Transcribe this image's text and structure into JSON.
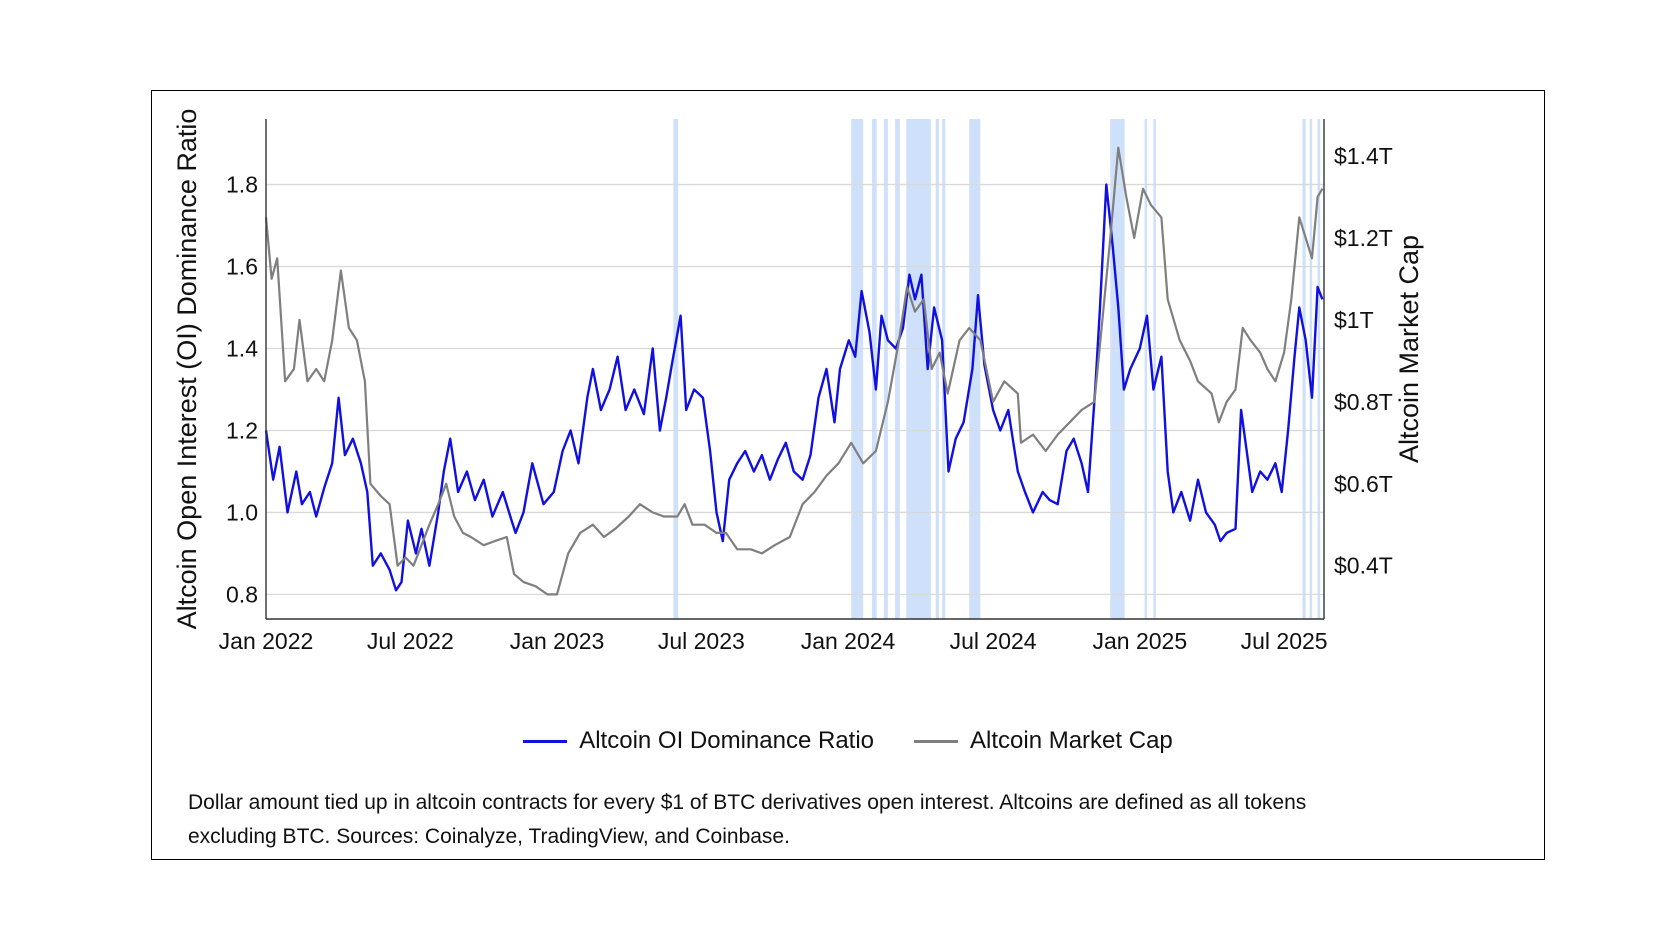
{
  "chart_data": {
    "type": "line",
    "x_type": "date",
    "x_ticks": [
      "Jan 2022",
      "Jul 2022",
      "Jan 2023",
      "Jul 2023",
      "Jan 2024",
      "Jul 2024",
      "Jan 2025",
      "Jul 2025"
    ],
    "x_range": [
      "2022-01-01",
      "2025-08-20"
    ],
    "ylabel": "Altcoin Open Interest (OI) Dominance Ratio",
    "ylim": [
      0.74,
      1.96
    ],
    "y_ticks": [
      "0.8",
      "1.0",
      "1.2",
      "1.4",
      "1.6",
      "1.8"
    ],
    "y2label": "Altcoin Market Cap",
    "y2_unit": "trillion USD",
    "y2lim": [
      0.27,
      1.49
    ],
    "y2_ticks": [
      "$0.4T",
      "$0.6T",
      "$0.8T",
      "$1T",
      "$1.2T",
      "$1.4T"
    ],
    "grid": "horizontal",
    "legend_position": "bottom-center",
    "series": [
      {
        "name": "Altcoin OI Dominance Ratio",
        "axis": "left",
        "color": "#1010e0",
        "points": [
          [
            "2022-01-01",
            1.2
          ],
          [
            "2022-01-10",
            1.08
          ],
          [
            "2022-01-18",
            1.16
          ],
          [
            "2022-01-28",
            1.0
          ],
          [
            "2022-02-08",
            1.1
          ],
          [
            "2022-02-15",
            1.02
          ],
          [
            "2022-02-25",
            1.05
          ],
          [
            "2022-03-05",
            0.99
          ],
          [
            "2022-03-15",
            1.06
          ],
          [
            "2022-03-25",
            1.12
          ],
          [
            "2022-04-02",
            1.28
          ],
          [
            "2022-04-10",
            1.14
          ],
          [
            "2022-04-20",
            1.18
          ],
          [
            "2022-04-30",
            1.12
          ],
          [
            "2022-05-08",
            1.05
          ],
          [
            "2022-05-15",
            0.87
          ],
          [
            "2022-05-25",
            0.9
          ],
          [
            "2022-06-05",
            0.86
          ],
          [
            "2022-06-13",
            0.81
          ],
          [
            "2022-06-20",
            0.83
          ],
          [
            "2022-06-28",
            0.98
          ],
          [
            "2022-07-08",
            0.9
          ],
          [
            "2022-07-15",
            0.96
          ],
          [
            "2022-07-25",
            0.87
          ],
          [
            "2022-08-05",
            1.0
          ],
          [
            "2022-08-12",
            1.1
          ],
          [
            "2022-08-20",
            1.18
          ],
          [
            "2022-08-30",
            1.05
          ],
          [
            "2022-09-10",
            1.1
          ],
          [
            "2022-09-20",
            1.03
          ],
          [
            "2022-10-01",
            1.08
          ],
          [
            "2022-10-12",
            0.99
          ],
          [
            "2022-10-25",
            1.05
          ],
          [
            "2022-11-05",
            0.98
          ],
          [
            "2022-11-10",
            0.95
          ],
          [
            "2022-11-20",
            1.0
          ],
          [
            "2022-12-01",
            1.12
          ],
          [
            "2022-12-15",
            1.02
          ],
          [
            "2022-12-28",
            1.05
          ],
          [
            "2023-01-08",
            1.15
          ],
          [
            "2023-01-18",
            1.2
          ],
          [
            "2023-01-28",
            1.12
          ],
          [
            "2023-02-08",
            1.28
          ],
          [
            "2023-02-15",
            1.35
          ],
          [
            "2023-02-25",
            1.25
          ],
          [
            "2023-03-08",
            1.3
          ],
          [
            "2023-03-18",
            1.38
          ],
          [
            "2023-03-28",
            1.25
          ],
          [
            "2023-04-08",
            1.3
          ],
          [
            "2023-04-20",
            1.24
          ],
          [
            "2023-05-01",
            1.4
          ],
          [
            "2023-05-10",
            1.2
          ],
          [
            "2023-05-18",
            1.28
          ],
          [
            "2023-05-25",
            1.36
          ],
          [
            "2023-06-05",
            1.48
          ],
          [
            "2023-06-12",
            1.25
          ],
          [
            "2023-06-22",
            1.3
          ],
          [
            "2023-07-03",
            1.28
          ],
          [
            "2023-07-12",
            1.15
          ],
          [
            "2023-07-20",
            1.0
          ],
          [
            "2023-07-28",
            0.93
          ],
          [
            "2023-08-05",
            1.08
          ],
          [
            "2023-08-15",
            1.12
          ],
          [
            "2023-08-25",
            1.15
          ],
          [
            "2023-09-05",
            1.1
          ],
          [
            "2023-09-15",
            1.14
          ],
          [
            "2023-09-25",
            1.08
          ],
          [
            "2023-10-05",
            1.13
          ],
          [
            "2023-10-15",
            1.17
          ],
          [
            "2023-10-25",
            1.1
          ],
          [
            "2023-11-05",
            1.08
          ],
          [
            "2023-11-15",
            1.14
          ],
          [
            "2023-11-25",
            1.28
          ],
          [
            "2023-12-05",
            1.35
          ],
          [
            "2023-12-15",
            1.22
          ],
          [
            "2023-12-22",
            1.35
          ],
          [
            "2024-01-02",
            1.42
          ],
          [
            "2024-01-10",
            1.38
          ],
          [
            "2024-01-18",
            1.54
          ],
          [
            "2024-01-28",
            1.44
          ],
          [
            "2024-02-05",
            1.3
          ],
          [
            "2024-02-12",
            1.48
          ],
          [
            "2024-02-20",
            1.42
          ],
          [
            "2024-03-01",
            1.4
          ],
          [
            "2024-03-10",
            1.45
          ],
          [
            "2024-03-18",
            1.58
          ],
          [
            "2024-03-25",
            1.52
          ],
          [
            "2024-04-02",
            1.58
          ],
          [
            "2024-04-10",
            1.35
          ],
          [
            "2024-04-18",
            1.5
          ],
          [
            "2024-04-28",
            1.42
          ],
          [
            "2024-05-06",
            1.1
          ],
          [
            "2024-05-15",
            1.18
          ],
          [
            "2024-05-25",
            1.22
          ],
          [
            "2024-06-05",
            1.35
          ],
          [
            "2024-06-12",
            1.53
          ],
          [
            "2024-06-20",
            1.36
          ],
          [
            "2024-07-01",
            1.25
          ],
          [
            "2024-07-10",
            1.2
          ],
          [
            "2024-07-20",
            1.25
          ],
          [
            "2024-08-01",
            1.1
          ],
          [
            "2024-08-10",
            1.05
          ],
          [
            "2024-08-20",
            1.0
          ],
          [
            "2024-09-01",
            1.05
          ],
          [
            "2024-09-10",
            1.03
          ],
          [
            "2024-09-20",
            1.02
          ],
          [
            "2024-10-01",
            1.15
          ],
          [
            "2024-10-10",
            1.18
          ],
          [
            "2024-10-20",
            1.12
          ],
          [
            "2024-10-28",
            1.05
          ],
          [
            "2024-11-06",
            1.3
          ],
          [
            "2024-11-12",
            1.5
          ],
          [
            "2024-11-20",
            1.8
          ],
          [
            "2024-11-28",
            1.65
          ],
          [
            "2024-12-05",
            1.5
          ],
          [
            "2024-12-12",
            1.3
          ],
          [
            "2024-12-20",
            1.35
          ],
          [
            "2025-01-01",
            1.4
          ],
          [
            "2025-01-10",
            1.48
          ],
          [
            "2025-01-18",
            1.3
          ],
          [
            "2025-01-28",
            1.38
          ],
          [
            "2025-02-05",
            1.1
          ],
          [
            "2025-02-12",
            1.0
          ],
          [
            "2025-02-22",
            1.05
          ],
          [
            "2025-03-05",
            0.98
          ],
          [
            "2025-03-15",
            1.08
          ],
          [
            "2025-03-25",
            1.0
          ],
          [
            "2025-04-05",
            0.97
          ],
          [
            "2025-04-12",
            0.93
          ],
          [
            "2025-04-20",
            0.95
          ],
          [
            "2025-05-01",
            0.96
          ],
          [
            "2025-05-08",
            1.25
          ],
          [
            "2025-05-15",
            1.15
          ],
          [
            "2025-05-22",
            1.05
          ],
          [
            "2025-06-01",
            1.1
          ],
          [
            "2025-06-10",
            1.08
          ],
          [
            "2025-06-20",
            1.12
          ],
          [
            "2025-06-28",
            1.05
          ],
          [
            "2025-07-06",
            1.2
          ],
          [
            "2025-07-14",
            1.38
          ],
          [
            "2025-07-20",
            1.5
          ],
          [
            "2025-07-28",
            1.42
          ],
          [
            "2025-08-05",
            1.28
          ],
          [
            "2025-08-12",
            1.55
          ],
          [
            "2025-08-18",
            1.52
          ]
        ]
      },
      {
        "name": "Altcoin Market Cap",
        "axis": "right",
        "color": "#7f7f7f",
        "points": [
          [
            "2022-01-01",
            1.25
          ],
          [
            "2022-01-08",
            1.1
          ],
          [
            "2022-01-15",
            1.15
          ],
          [
            "2022-01-25",
            0.85
          ],
          [
            "2022-02-05",
            0.88
          ],
          [
            "2022-02-12",
            1.0
          ],
          [
            "2022-02-22",
            0.85
          ],
          [
            "2022-03-05",
            0.88
          ],
          [
            "2022-03-15",
            0.85
          ],
          [
            "2022-03-25",
            0.95
          ],
          [
            "2022-04-05",
            1.12
          ],
          [
            "2022-04-15",
            0.98
          ],
          [
            "2022-04-25",
            0.95
          ],
          [
            "2022-05-05",
            0.85
          ],
          [
            "2022-05-12",
            0.6
          ],
          [
            "2022-05-25",
            0.57
          ],
          [
            "2022-06-05",
            0.55
          ],
          [
            "2022-06-15",
            0.4
          ],
          [
            "2022-06-25",
            0.42
          ],
          [
            "2022-07-05",
            0.4
          ],
          [
            "2022-07-15",
            0.45
          ],
          [
            "2022-07-25",
            0.5
          ],
          [
            "2022-08-05",
            0.55
          ],
          [
            "2022-08-15",
            0.6
          ],
          [
            "2022-08-25",
            0.52
          ],
          [
            "2022-09-05",
            0.48
          ],
          [
            "2022-09-15",
            0.47
          ],
          [
            "2022-10-01",
            0.45
          ],
          [
            "2022-10-15",
            0.46
          ],
          [
            "2022-10-30",
            0.47
          ],
          [
            "2022-11-08",
            0.38
          ],
          [
            "2022-11-20",
            0.36
          ],
          [
            "2022-12-05",
            0.35
          ],
          [
            "2022-12-20",
            0.33
          ],
          [
            "2023-01-01",
            0.33
          ],
          [
            "2023-01-15",
            0.43
          ],
          [
            "2023-01-30",
            0.48
          ],
          [
            "2023-02-15",
            0.5
          ],
          [
            "2023-03-01",
            0.47
          ],
          [
            "2023-03-15",
            0.49
          ],
          [
            "2023-04-01",
            0.52
          ],
          [
            "2023-04-15",
            0.55
          ],
          [
            "2023-05-01",
            0.53
          ],
          [
            "2023-05-15",
            0.52
          ],
          [
            "2023-06-01",
            0.52
          ],
          [
            "2023-06-10",
            0.55
          ],
          [
            "2023-06-20",
            0.5
          ],
          [
            "2023-07-05",
            0.5
          ],
          [
            "2023-07-20",
            0.48
          ],
          [
            "2023-08-01",
            0.48
          ],
          [
            "2023-08-15",
            0.44
          ],
          [
            "2023-09-01",
            0.44
          ],
          [
            "2023-09-15",
            0.43
          ],
          [
            "2023-10-01",
            0.45
          ],
          [
            "2023-10-20",
            0.47
          ],
          [
            "2023-11-05",
            0.55
          ],
          [
            "2023-11-20",
            0.58
          ],
          [
            "2023-12-05",
            0.62
          ],
          [
            "2023-12-20",
            0.65
          ],
          [
            "2024-01-05",
            0.7
          ],
          [
            "2024-01-20",
            0.65
          ],
          [
            "2024-02-05",
            0.68
          ],
          [
            "2024-02-20",
            0.8
          ],
          [
            "2024-03-05",
            0.95
          ],
          [
            "2024-03-15",
            1.08
          ],
          [
            "2024-03-25",
            1.02
          ],
          [
            "2024-04-05",
            1.05
          ],
          [
            "2024-04-15",
            0.88
          ],
          [
            "2024-04-25",
            0.92
          ],
          [
            "2024-05-05",
            0.82
          ],
          [
            "2024-05-20",
            0.95
          ],
          [
            "2024-06-01",
            0.98
          ],
          [
            "2024-06-15",
            0.95
          ],
          [
            "2024-07-01",
            0.8
          ],
          [
            "2024-07-15",
            0.85
          ],
          [
            "2024-08-01",
            0.82
          ],
          [
            "2024-08-05",
            0.7
          ],
          [
            "2024-08-20",
            0.72
          ],
          [
            "2024-09-05",
            0.68
          ],
          [
            "2024-09-20",
            0.72
          ],
          [
            "2024-10-05",
            0.75
          ],
          [
            "2024-10-20",
            0.78
          ],
          [
            "2024-11-05",
            0.8
          ],
          [
            "2024-11-15",
            1.0
          ],
          [
            "2024-11-25",
            1.2
          ],
          [
            "2024-12-05",
            1.42
          ],
          [
            "2024-12-15",
            1.3
          ],
          [
            "2024-12-25",
            1.2
          ],
          [
            "2025-01-05",
            1.32
          ],
          [
            "2025-01-15",
            1.28
          ],
          [
            "2025-01-28",
            1.25
          ],
          [
            "2025-02-05",
            1.05
          ],
          [
            "2025-02-20",
            0.95
          ],
          [
            "2025-03-05",
            0.9
          ],
          [
            "2025-03-15",
            0.85
          ],
          [
            "2025-04-01",
            0.82
          ],
          [
            "2025-04-10",
            0.75
          ],
          [
            "2025-04-20",
            0.8
          ],
          [
            "2025-05-01",
            0.83
          ],
          [
            "2025-05-10",
            0.98
          ],
          [
            "2025-05-20",
            0.95
          ],
          [
            "2025-06-01",
            0.92
          ],
          [
            "2025-06-10",
            0.88
          ],
          [
            "2025-06-20",
            0.85
          ],
          [
            "2025-07-01",
            0.92
          ],
          [
            "2025-07-10",
            1.05
          ],
          [
            "2025-07-20",
            1.25
          ],
          [
            "2025-07-28",
            1.2
          ],
          [
            "2025-08-05",
            1.15
          ],
          [
            "2025-08-12",
            1.3
          ],
          [
            "2025-08-18",
            1.32
          ]
        ]
      }
    ],
    "highlight_color": "#cfe0fb",
    "highlight_bands": [
      [
        "2023-05-27",
        "2023-06-02"
      ],
      [
        "2024-01-05",
        "2024-01-20"
      ],
      [
        "2024-01-31",
        "2024-02-06"
      ],
      [
        "2024-02-15",
        "2024-02-20"
      ],
      [
        "2024-02-29",
        "2024-03-06"
      ],
      [
        "2024-03-14",
        "2024-04-14"
      ],
      [
        "2024-04-20",
        "2024-04-24"
      ],
      [
        "2024-04-28",
        "2024-05-02"
      ],
      [
        "2024-06-01",
        "2024-06-15"
      ],
      [
        "2024-11-25",
        "2024-12-13"
      ],
      [
        "2025-01-07",
        "2025-01-10"
      ],
      [
        "2025-01-18",
        "2025-01-21"
      ],
      [
        "2025-07-24",
        "2025-07-28"
      ],
      [
        "2025-08-02",
        "2025-08-05"
      ],
      [
        "2025-08-12",
        "2025-08-15"
      ]
    ]
  },
  "caption": "Dollar amount tied up in altcoin contracts for every $1 of BTC derivatives open interest. Altcoins are defined as all tokens excluding BTC. Sources: Coinalyze, TradingView, and Coinbase."
}
